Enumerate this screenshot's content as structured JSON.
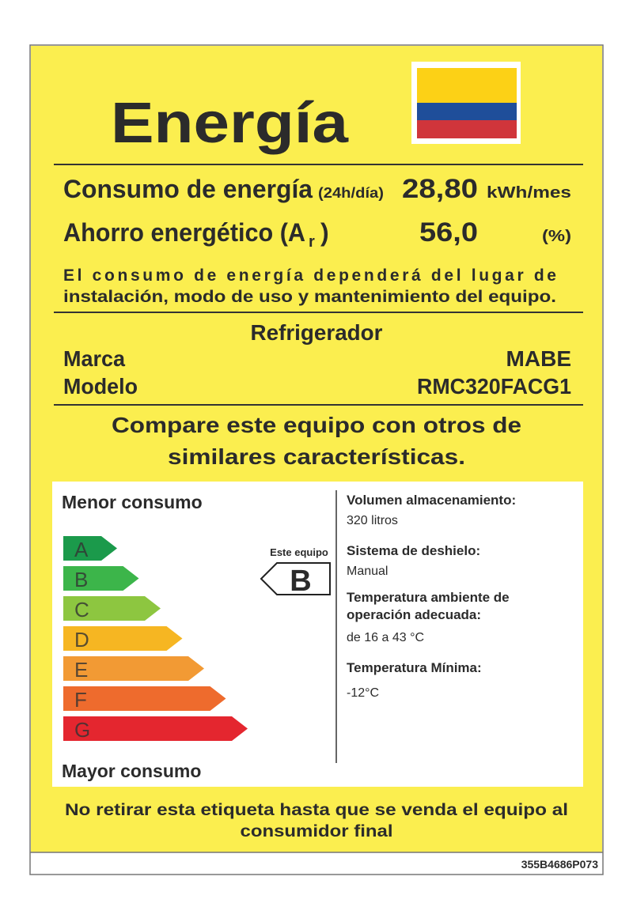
{
  "header": {
    "title": "Energía"
  },
  "consumption": {
    "label": "Consumo de energía",
    "period": "(24h/día)",
    "value": "28,80",
    "unit": "kWh/mes"
  },
  "savings": {
    "label": "Ahorro energético (A",
    "subscript": "r",
    "close": ")",
    "value": "56,0",
    "unit": "(%)"
  },
  "note": [
    "El consumo de energía dependerá del lugar de",
    "instalación, modo de uso y mantenimiento del equipo."
  ],
  "product": {
    "type": "Refrigerador",
    "brand_label": "Marca",
    "brand": "MABE",
    "model_label": "Modelo",
    "model": "RMC320FACG1"
  },
  "compare": [
    "Compare este equipo con otros de",
    "similares características."
  ],
  "scale": {
    "top_label": "Menor consumo",
    "bottom_label": "Mayor consumo",
    "classes": [
      {
        "letter": "A",
        "color": "#1b9a4b"
      },
      {
        "letter": "B",
        "color": "#3cb54a"
      },
      {
        "letter": "C",
        "color": "#8dc640"
      },
      {
        "letter": "D",
        "color": "#f6b622"
      },
      {
        "letter": "E",
        "color": "#f29a34"
      },
      {
        "letter": "F",
        "color": "#ee6b2d"
      },
      {
        "letter": "G",
        "color": "#e4262f"
      }
    ],
    "this_label": "Este equipo",
    "this_class": "B"
  },
  "specs": [
    {
      "label": [
        "Volumen  almacenamiento:"
      ],
      "value": "320 litros"
    },
    {
      "label": [
        "Sistema de deshielo:"
      ],
      "value": "Manual"
    },
    {
      "label": [
        "Temperatura ambiente de",
        "operación adecuada:"
      ],
      "value": "de 16 a 43 °C"
    },
    {
      "label": [
        "Temperatura Mínima:"
      ],
      "value": "-12°C"
    }
  ],
  "footer": {
    "lines": [
      "No retirar esta etiqueta hasta que se venda el equipo al",
      "consumidor final"
    ],
    "code": "355B4686P073"
  }
}
